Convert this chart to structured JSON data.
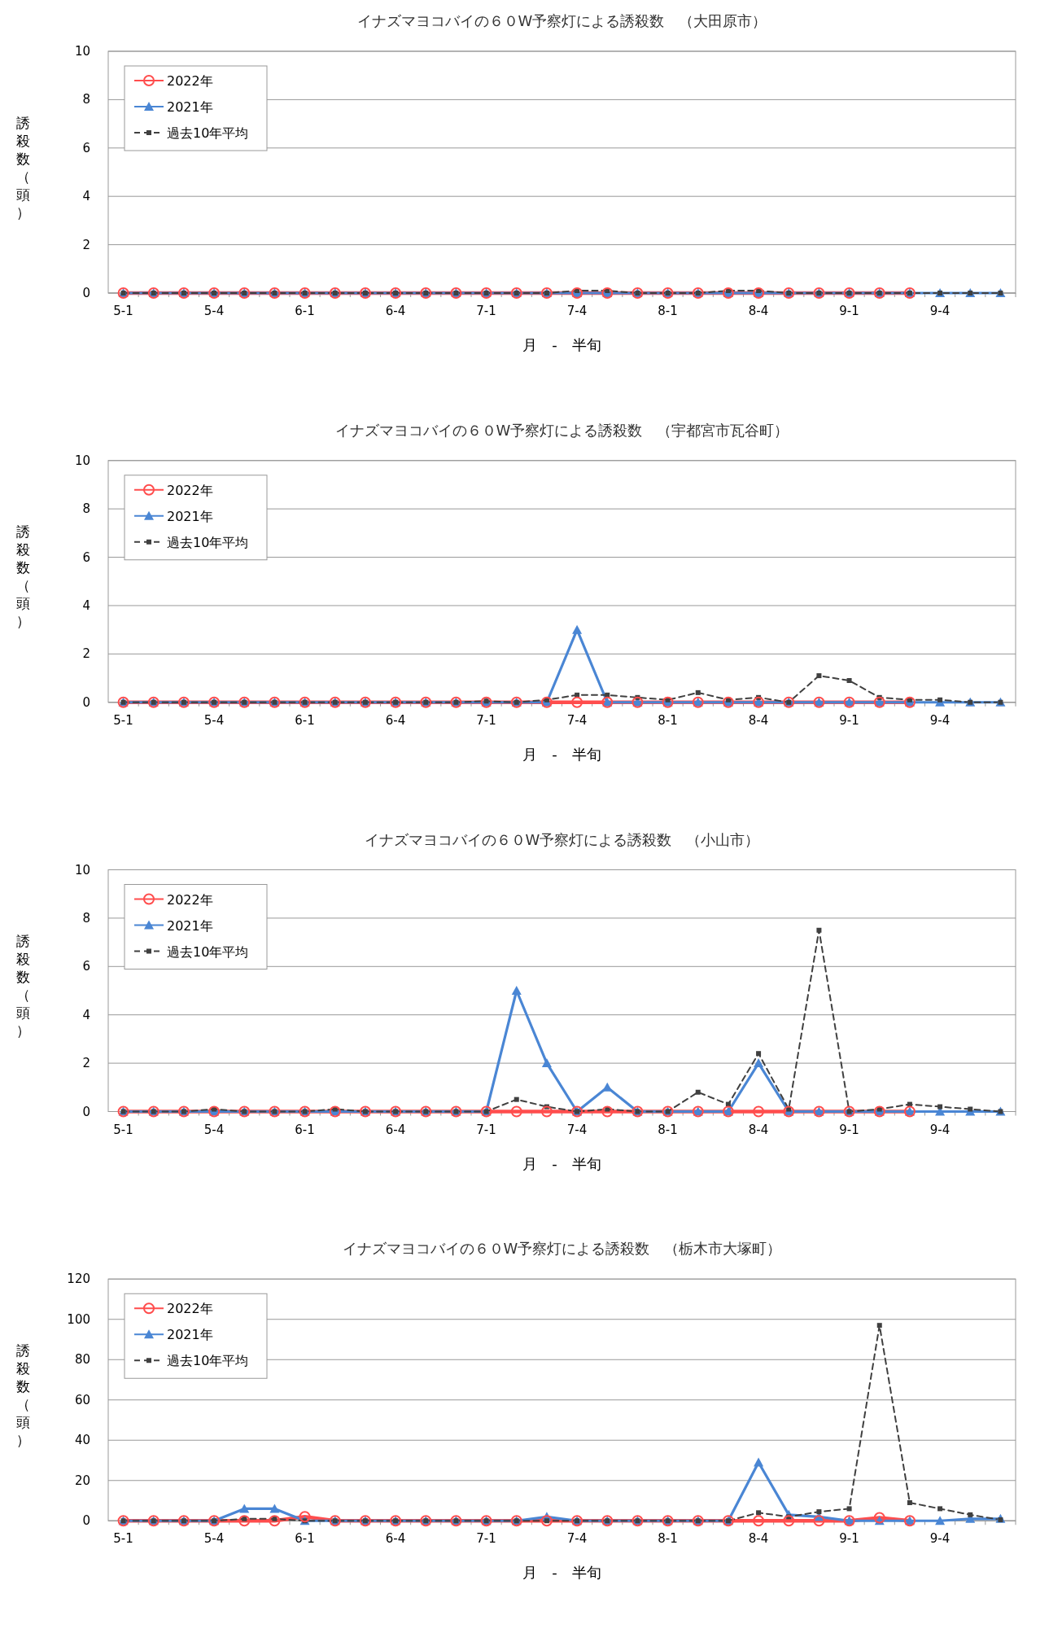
{
  "chart_data": [
    {
      "type": "line",
      "title": "イナズマヨコバイの６０W予察灯による誘殺数　（大田原市）",
      "xlabel": "月　-　半旬",
      "ylabel": "誘殺数（頭）",
      "categories": [
        "5-1",
        null,
        null,
        "5-4",
        null,
        null,
        "6-1",
        null,
        null,
        "6-4",
        null,
        null,
        "7-1",
        null,
        null,
        "7-4",
        null,
        null,
        "8-1",
        null,
        null,
        "8-4",
        null,
        null,
        "9-1",
        null,
        null,
        "9-4",
        null,
        null
      ],
      "ylim": [
        0,
        10
      ],
      "yticks": [
        0,
        2,
        4,
        6,
        8,
        10
      ],
      "grid": "y",
      "legend": "top left",
      "series": [
        {
          "name": "2022年",
          "color": "#ff4d4d",
          "marker": "circle",
          "line_style": "solid",
          "values": [
            0,
            0,
            0,
            0,
            0,
            0,
            0,
            0,
            0,
            0,
            0,
            0,
            0,
            0,
            0,
            0,
            0,
            0,
            0,
            0,
            0,
            0,
            0,
            0,
            0,
            0,
            0,
            null,
            null,
            null
          ]
        },
        {
          "name": "2021年",
          "color": "#4a86d4",
          "marker": "triangle",
          "line_style": "solid",
          "values": [
            0,
            0,
            0,
            0,
            0,
            0,
            0,
            0,
            0,
            0,
            0,
            0,
            0,
            0,
            0,
            0,
            0,
            0,
            0,
            0,
            0,
            0,
            0,
            0,
            0,
            0,
            0,
            0,
            0,
            0
          ]
        },
        {
          "name": "過去10年平均",
          "color": "#404040",
          "marker": "square",
          "line_style": "dashed",
          "values": [
            0,
            0,
            0,
            0,
            0,
            0,
            0,
            0,
            0,
            0,
            0,
            0,
            0,
            0,
            0,
            0.1,
            0.1,
            0,
            0,
            0,
            0.1,
            0.1,
            0,
            0,
            0,
            0,
            0,
            0,
            0,
            0
          ]
        }
      ]
    },
    {
      "type": "line",
      "title": "イナズマヨコバイの６０W予察灯による誘殺数　（宇都宮市瓦谷町）",
      "xlabel": "月　-　半旬",
      "ylabel": "誘殺数（頭）",
      "categories": [
        "5-1",
        null,
        null,
        "5-4",
        null,
        null,
        "6-1",
        null,
        null,
        "6-4",
        null,
        null,
        "7-1",
        null,
        null,
        "7-4",
        null,
        null,
        "8-1",
        null,
        null,
        "8-4",
        null,
        null,
        "9-1",
        null,
        null,
        "9-4",
        null,
        null
      ],
      "ylim": [
        0,
        10
      ],
      "yticks": [
        0,
        2,
        4,
        6,
        8,
        10
      ],
      "grid": "y",
      "legend": "top left",
      "series": [
        {
          "name": "2022年",
          "color": "#ff4d4d",
          "marker": "circle",
          "line_style": "solid",
          "values": [
            0,
            0,
            0,
            0,
            0,
            0,
            0,
            0,
            0,
            0,
            0,
            0,
            0,
            0,
            0,
            0,
            0,
            0,
            0,
            0,
            0,
            0,
            0,
            0,
            0,
            0,
            0,
            null,
            null,
            null
          ]
        },
        {
          "name": "2021年",
          "color": "#4a86d4",
          "marker": "triangle",
          "line_style": "solid",
          "values": [
            0,
            0,
            0,
            0,
            0,
            0,
            0,
            0,
            0,
            0,
            0,
            0,
            0,
            0,
            0,
            3,
            0,
            0,
            0,
            0,
            0,
            0,
            0,
            0,
            0,
            0,
            0,
            0,
            0,
            0
          ]
        },
        {
          "name": "過去10年平均",
          "color": "#404040",
          "marker": "square",
          "line_style": "dashed",
          "values": [
            0,
            0,
            0,
            0,
            0,
            0,
            0,
            0,
            0,
            0,
            0,
            0,
            0.05,
            0,
            0.1,
            0.3,
            0.3,
            0.2,
            0.1,
            0.4,
            0.1,
            0.2,
            0,
            1.1,
            0.9,
            0.2,
            0.1,
            0.1,
            0,
            0
          ]
        }
      ]
    },
    {
      "type": "line",
      "title": "イナズマヨコバイの６０W予察灯による誘殺数　（小山市）",
      "xlabel": "月　-　半旬",
      "ylabel": "誘殺数（頭）",
      "categories": [
        "5-1",
        null,
        null,
        "5-4",
        null,
        null,
        "6-1",
        null,
        null,
        "6-4",
        null,
        null,
        "7-1",
        null,
        null,
        "7-4",
        null,
        null,
        "8-1",
        null,
        null,
        "8-4",
        null,
        null,
        "9-1",
        null,
        null,
        "9-4",
        null,
        null
      ],
      "ylim": [
        0,
        10
      ],
      "yticks": [
        0,
        2,
        4,
        6,
        8,
        10
      ],
      "grid": "y",
      "legend": "top left",
      "series": [
        {
          "name": "2022年",
          "color": "#ff4d4d",
          "marker": "circle",
          "line_style": "solid",
          "values": [
            0,
            0,
            0,
            0,
            0,
            0,
            0,
            0,
            0,
            0,
            0,
            0,
            0,
            0,
            0,
            0,
            0,
            0,
            0,
            0,
            0,
            0,
            0,
            0,
            0,
            0,
            0,
            null,
            null,
            null
          ]
        },
        {
          "name": "2021年",
          "color": "#4a86d4",
          "marker": "triangle",
          "line_style": "solid",
          "values": [
            0,
            0,
            0,
            0,
            0,
            0,
            0,
            0,
            0,
            0,
            0,
            0,
            0,
            5,
            2,
            0,
            1,
            0,
            0,
            0,
            0,
            2,
            0,
            0,
            0,
            0,
            0,
            0,
            0,
            0
          ]
        },
        {
          "name": "過去10年平均",
          "color": "#404040",
          "marker": "square",
          "line_style": "dashed",
          "values": [
            0,
            0,
            0,
            0.1,
            0,
            0,
            0,
            0.1,
            0,
            0,
            0,
            0,
            0,
            0.5,
            0.2,
            0,
            0.1,
            0,
            0,
            0.8,
            0.3,
            2.4,
            0.1,
            7.5,
            0,
            0.1,
            0.3,
            0.2,
            0.1,
            0
          ]
        }
      ]
    },
    {
      "type": "line",
      "title": "イナズマヨコバイの６０W予察灯による誘殺数　（栃木市大塚町）",
      "xlabel": "月　-　半旬",
      "ylabel": "誘殺数（頭）",
      "categories": [
        "5-1",
        null,
        null,
        "5-4",
        null,
        null,
        "6-1",
        null,
        null,
        "6-4",
        null,
        null,
        "7-1",
        null,
        null,
        "7-4",
        null,
        null,
        "8-1",
        null,
        null,
        "8-4",
        null,
        null,
        "9-1",
        null,
        null,
        "9-4",
        null,
        null
      ],
      "ylim": [
        0,
        120
      ],
      "yticks": [
        0,
        20,
        40,
        60,
        80,
        100,
        120
      ],
      "grid": "y",
      "legend": "top left",
      "series": [
        {
          "name": "2022年",
          "color": "#ff4d4d",
          "marker": "circle",
          "line_style": "solid",
          "values": [
            0,
            0,
            0,
            0,
            0,
            0,
            2,
            0,
            0,
            0,
            0,
            0,
            0,
            0,
            0,
            0,
            0,
            0,
            0,
            0,
            0,
            0,
            0,
            0,
            0,
            1.5,
            0,
            null,
            null,
            null
          ]
        },
        {
          "name": "2021年",
          "color": "#4a86d4",
          "marker": "triangle",
          "line_style": "solid",
          "values": [
            0,
            0,
            0,
            0,
            6,
            6,
            0,
            0,
            0,
            0,
            0,
            0,
            0,
            0,
            2,
            0,
            0,
            0,
            0,
            0,
            0,
            29,
            3,
            2,
            0,
            0,
            0,
            0,
            1,
            1
          ]
        },
        {
          "name": "過去10年平均",
          "color": "#404040",
          "marker": "square",
          "line_style": "dashed",
          "values": [
            0,
            0,
            0,
            0,
            1,
            1,
            0,
            0,
            0,
            0,
            0,
            0,
            0,
            0,
            0,
            0,
            0,
            0,
            0,
            0,
            0,
            4,
            2,
            4.5,
            6,
            97,
            9,
            6,
            3,
            0.5
          ]
        }
      ]
    }
  ]
}
